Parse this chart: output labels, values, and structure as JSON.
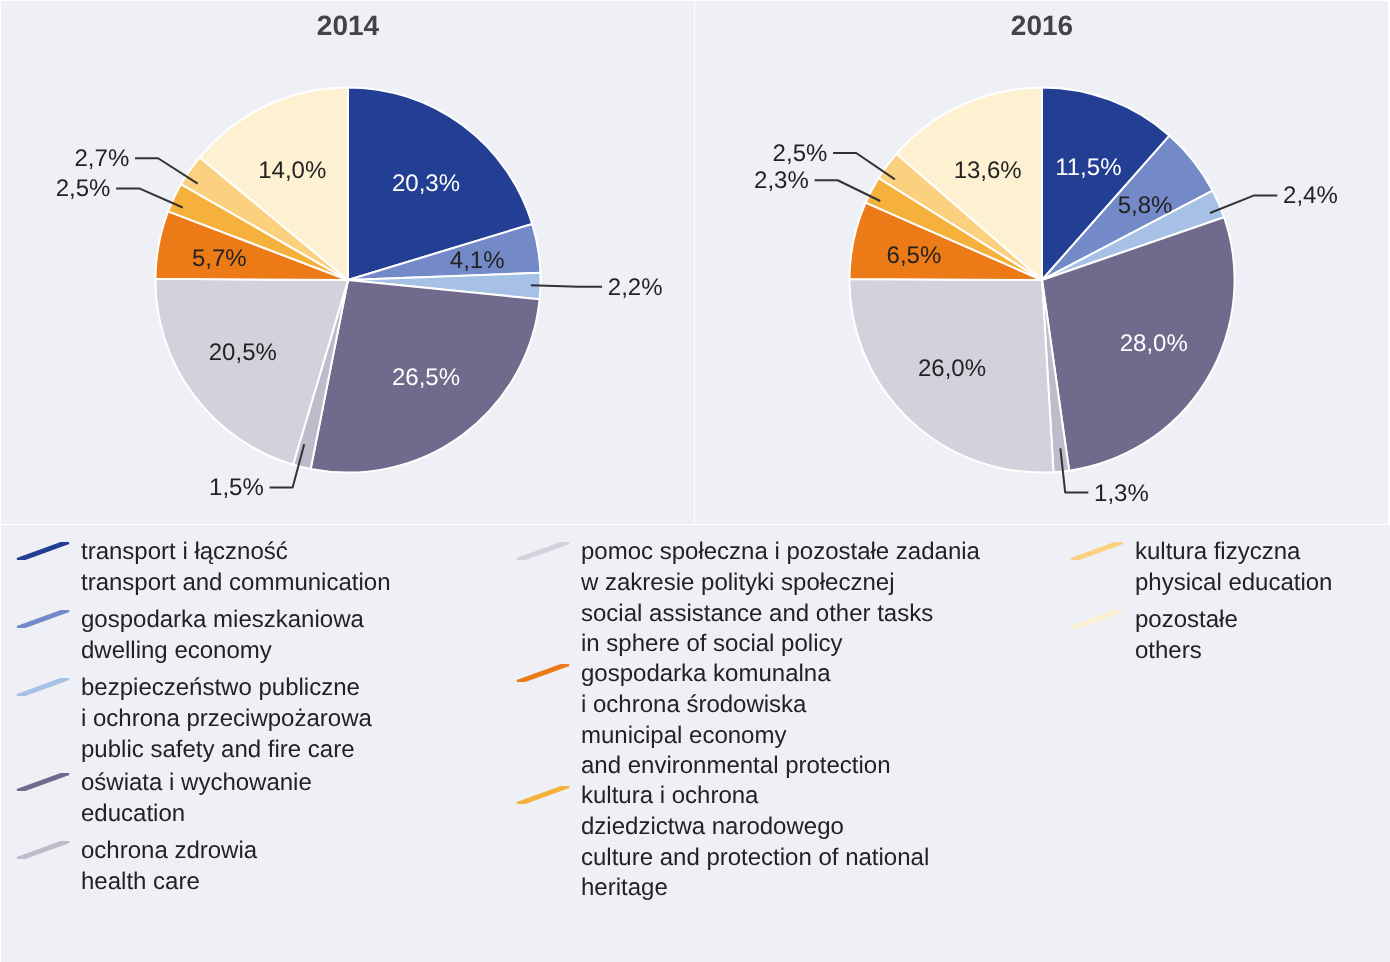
{
  "chart_data": [
    {
      "type": "pie",
      "title": "2014",
      "legend": "bottom",
      "categories": [
        "transport i łączność\ntransport and communication",
        "gospodarka mieszkaniowa\ndwelling economy",
        "bezpieczeństwo publiczne\ni ochrona przeciwpożarowa\npublic safety and fire care",
        "oświata i wychowanie\neducation",
        "ochrona zdrowia\nhealth care",
        "pomoc społeczna i pozostałe zadania\nw zakresie polityki społecznej\nsocial assistance and other tasks\nin sphere of social policy",
        "gospodarka komunalna\ni ochrona środowiska\nmunicipal economy\nand environmental protection",
        "kultura i ochrona\ndziedzictwa narodowego\nculture and protection of national\nheritage",
        "kultura fizyczna\nphysical education",
        "pozostałe\nothers"
      ],
      "values": [
        20.3,
        4.1,
        2.2,
        26.5,
        1.5,
        20.5,
        5.7,
        2.5,
        2.7,
        14.0
      ],
      "value_labels": [
        "20,3%",
        "4,1%",
        "2,2%",
        "26,5%",
        "1,5%",
        "20,5%",
        "5,7%",
        "2,5%",
        "2,7%",
        "14,0%"
      ],
      "colors": [
        "#233f94",
        "#7489c8",
        "#a7c1e6",
        "#716a8c",
        "#bdbccb",
        "#d3d1dc",
        "#ec7a17",
        "#f5b13c",
        "#fbd07f",
        "#fdf1d2"
      ]
    },
    {
      "type": "pie",
      "title": "2016",
      "values": [
        11.5,
        5.8,
        2.4,
        28.0,
        1.3,
        26.0,
        6.5,
        2.3,
        2.5,
        13.6
      ],
      "value_labels": [
        "11,5%",
        "5,8%",
        "2,4%",
        "28,0%",
        "1,3%",
        "26,0%",
        "6,5%",
        "2,3%",
        "2,5%",
        "13,6%"
      ],
      "colors": [
        "#233f94",
        "#7489c8",
        "#a7c1e6",
        "#716a8c",
        "#bdbccb",
        "#d3d1dc",
        "#ec7a17",
        "#f5b13c",
        "#fbd07f",
        "#fdf1d2"
      ]
    }
  ]
}
